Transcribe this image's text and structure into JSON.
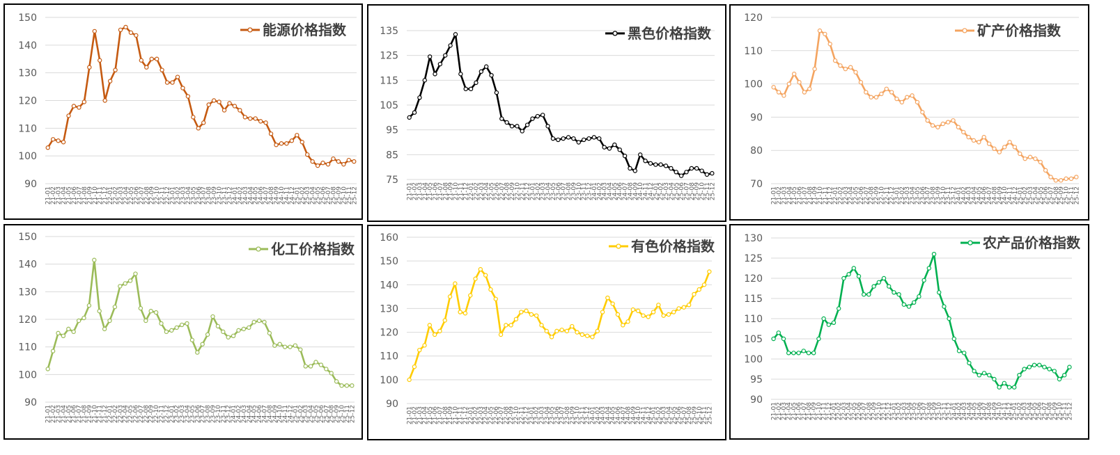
{
  "chart_data": [
    {
      "type": "line",
      "title": "",
      "series": [
        {
          "name": "能源价格指数",
          "color": "#C55A11",
          "values": [
            103,
            106,
            105.5,
            105,
            114.5,
            118,
            117.5,
            119.5,
            132,
            145,
            134.5,
            120,
            127,
            131,
            145.5,
            146.5,
            144.5,
            143.5,
            134.5,
            132,
            135,
            135,
            131,
            126.5,
            126.5,
            128.5,
            124.5,
            121.5,
            114,
            110,
            112,
            118.5,
            120,
            119.5,
            116.5,
            119,
            118,
            116.5,
            114,
            113.5,
            113.5,
            112.5,
            112,
            108,
            104,
            104.5,
            104.5,
            105.5,
            107.5,
            105,
            100.5,
            98,
            96.5,
            97.5,
            97,
            99,
            98,
            97,
            98.5,
            98
          ]
        }
      ],
      "ylim": [
        90,
        150
      ],
      "yticks": [
        90,
        100,
        110,
        120,
        130,
        140,
        150
      ],
      "x_tick_labels": [
        "21-01",
        "21-02",
        "21-03",
        "21-04",
        "21-05",
        "21-06",
        "21-07",
        "21-08",
        "21-09",
        "21-10",
        "21-11",
        "21-12",
        "22-01",
        "22-02",
        "22-03",
        "22-04",
        "22-05",
        "22-06",
        "22-07",
        "22-08",
        "22-09",
        "22-10",
        "22-11",
        "22-12",
        "23-01",
        "23-02",
        "23-03",
        "23-04",
        "23-05",
        "23-06",
        "23-07",
        "23-08",
        "23-09",
        "23-10",
        "23-11",
        "23-12",
        "24-01",
        "24-02",
        "24-03",
        "24-04",
        "24-05",
        "24-06",
        "24-07",
        "24-08",
        "24-09",
        "24-10",
        "24-11",
        "24-12",
        "25-01",
        "25-02",
        "25-03",
        "25-04",
        "25-05",
        "25-06",
        "25-07",
        "25-08",
        "25-09",
        "25-10",
        "25-11",
        "25-12"
      ],
      "grid": "horizontal",
      "legend_position": "top-right"
    },
    {
      "type": "line",
      "title": "",
      "series": [
        {
          "name": "黑色价格指数",
          "color": "#000000",
          "values": [
            100,
            102,
            108,
            115,
            124.5,
            117.5,
            121.5,
            125,
            129,
            133.5,
            117.5,
            111.5,
            111.5,
            114,
            118.5,
            120.5,
            117,
            110,
            99.5,
            98,
            96.5,
            96.5,
            94.5,
            97,
            99.5,
            100.5,
            101,
            96.5,
            91.5,
            91,
            91.5,
            92,
            91.5,
            90,
            91,
            91.5,
            92,
            91.5,
            88,
            87.5,
            89,
            87,
            84.5,
            79.5,
            78.5,
            85,
            82.5,
            81.5,
            81,
            81,
            80.5,
            79.5,
            78,
            76.5,
            78,
            79.5,
            79.5,
            78.5,
            77,
            77.5
          ]
        }
      ],
      "ylim": [
        75,
        135
      ],
      "yticks": [
        75,
        85,
        95,
        105,
        115,
        125,
        135
      ],
      "x_tick_labels": [
        "21-01",
        "21-02",
        "21-03",
        "21-04",
        "21-05",
        "21-06",
        "21-07",
        "21-08",
        "21-09",
        "21-10",
        "21-11",
        "21-12",
        "22-01",
        "22-02",
        "22-03",
        "22-04",
        "22-05",
        "22-06",
        "22-07",
        "22-08",
        "22-09",
        "22-10",
        "22-11",
        "22-12",
        "23-01",
        "23-02",
        "23-03",
        "23-04",
        "23-05",
        "23-06",
        "23-07",
        "23-08",
        "23-09",
        "23-10",
        "23-11",
        "23-12",
        "24-01",
        "24-02",
        "24-03",
        "24-04",
        "24-05",
        "24-06",
        "24-07",
        "24-08",
        "24-09",
        "24-10",
        "24-11",
        "24-12",
        "25-01",
        "25-02",
        "25-03",
        "25-04",
        "25-05",
        "25-06",
        "25-07",
        "25-08",
        "25-09",
        "25-10",
        "25-11",
        "25-12"
      ],
      "grid": "horizontal",
      "legend_position": "top-right"
    },
    {
      "type": "line",
      "title": "",
      "series": [
        {
          "name": "矿产价格指数",
          "color": "#F4A460",
          "values": [
            99,
            97.5,
            96.5,
            100,
            103,
            100.5,
            97.5,
            98.5,
            104.5,
            116,
            115,
            112,
            107,
            105.5,
            104.5,
            105,
            103.5,
            100.5,
            97.5,
            96,
            96,
            97,
            98.5,
            97.5,
            95.5,
            94.5,
            96,
            96.5,
            94.5,
            91.5,
            89,
            87.5,
            87,
            88,
            88.5,
            89,
            87,
            85.5,
            84,
            83,
            82.5,
            84,
            82,
            80.5,
            79.5,
            81,
            82.5,
            81,
            79,
            77.5,
            78,
            77.5,
            76.5,
            74,
            72,
            71,
            71,
            71.5,
            71.5,
            72
          ]
        }
      ],
      "ylim": [
        70,
        120
      ],
      "yticks": [
        70,
        80,
        90,
        100,
        110,
        120
      ],
      "x_tick_labels": [
        "21-01",
        "21-02",
        "21-03",
        "21-04",
        "21-05",
        "21-06",
        "21-07",
        "21-08",
        "21-09",
        "21-10",
        "21-11",
        "21-12",
        "22-01",
        "22-02",
        "22-03",
        "22-04",
        "22-05",
        "22-06",
        "22-07",
        "22-08",
        "22-09",
        "22-10",
        "22-11",
        "22-12",
        "23-01",
        "23-02",
        "23-03",
        "23-04",
        "23-05",
        "23-06",
        "23-07",
        "23-08",
        "23-09",
        "23-10",
        "23-11",
        "23-12",
        "24-01",
        "24-02",
        "24-03",
        "24-04",
        "24-05",
        "24-06",
        "24-07",
        "24-08",
        "24-09",
        "24-10",
        "24-11",
        "24-12",
        "25-01",
        "25-02",
        "25-03",
        "25-04",
        "25-05",
        "25-06",
        "25-07",
        "25-08",
        "25-09",
        "25-10",
        "25-11",
        "25-12"
      ],
      "grid": "horizontal",
      "legend_position": "top-right"
    },
    {
      "type": "line",
      "title": "",
      "series": [
        {
          "name": "化工价格指数",
          "color": "#9BBB59",
          "values": [
            102,
            108.5,
            115,
            114,
            116.5,
            115.5,
            119.5,
            120.5,
            125,
            141.5,
            123,
            116.5,
            119.5,
            124.5,
            132,
            133,
            134,
            136.5,
            124,
            119.5,
            123,
            122.5,
            118.5,
            115.5,
            116,
            117,
            118,
            118.5,
            112.5,
            108,
            111,
            114.5,
            121,
            117.5,
            115.5,
            113.5,
            114,
            116,
            116.5,
            117,
            119,
            119.5,
            119,
            115,
            110.5,
            111,
            110,
            110,
            110.5,
            109,
            103,
            103,
            104.5,
            103.5,
            102,
            100.5,
            97.5,
            96,
            96,
            96
          ]
        }
      ],
      "ylim": [
        90,
        150
      ],
      "yticks": [
        90,
        100,
        110,
        120,
        130,
        140,
        150
      ],
      "x_tick_labels": [
        "21-01",
        "21-02",
        "21-03",
        "21-04",
        "21-05",
        "21-06",
        "21-07",
        "21-08",
        "21-09",
        "21-10",
        "21-11",
        "21-12",
        "22-01",
        "22-02",
        "22-03",
        "22-04",
        "22-05",
        "22-06",
        "22-07",
        "22-08",
        "22-09",
        "22-10",
        "22-11",
        "22-12",
        "23-01",
        "23-02",
        "23-03",
        "23-04",
        "23-05",
        "23-06",
        "23-07",
        "23-08",
        "23-09",
        "23-10",
        "23-11",
        "23-12",
        "24-01",
        "24-02",
        "24-03",
        "24-04",
        "24-05",
        "24-06",
        "24-07",
        "24-08",
        "24-09",
        "24-10",
        "24-11",
        "24-12",
        "25-01",
        "25-02",
        "25-03",
        "25-04",
        "25-05",
        "25-06",
        "25-07",
        "25-08",
        "25-09",
        "25-10",
        "25-11",
        "25-12"
      ],
      "grid": "horizontal",
      "legend_position": "top-right"
    },
    {
      "type": "line",
      "title": "",
      "series": [
        {
          "name": "有色价格指数",
          "color": "#FFCC00",
          "values": [
            100,
            105.5,
            112.5,
            114.5,
            123,
            119,
            120.5,
            125,
            135,
            140.5,
            128.5,
            128,
            135.5,
            142.5,
            146.5,
            144,
            138,
            134,
            119,
            123,
            123,
            125.5,
            128.5,
            129,
            127.5,
            127,
            123,
            120.5,
            118,
            120.5,
            121,
            120.5,
            122.5,
            120,
            119,
            118.5,
            118,
            120.5,
            128.5,
            134.5,
            132,
            127.5,
            123,
            124.5,
            129.5,
            129,
            127,
            126.5,
            128.5,
            131.5,
            127,
            127.5,
            128.5,
            130,
            130.5,
            131.5,
            136,
            138,
            140,
            145.5
          ]
        }
      ],
      "ylim": [
        90,
        160
      ],
      "yticks": [
        90,
        100,
        110,
        120,
        130,
        140,
        150,
        160
      ],
      "x_tick_labels": [
        "21-01",
        "21-02",
        "21-03",
        "21-04",
        "21-05",
        "21-06",
        "21-07",
        "21-08",
        "21-09",
        "21-10",
        "21-11",
        "21-12",
        "22-01",
        "22-02",
        "22-03",
        "22-04",
        "22-05",
        "22-06",
        "22-07",
        "22-08",
        "22-09",
        "22-10",
        "22-11",
        "22-12",
        "23-01",
        "23-02",
        "23-03",
        "23-04",
        "23-05",
        "23-06",
        "23-07",
        "23-08",
        "23-09",
        "23-10",
        "23-11",
        "23-12",
        "24-01",
        "24-02",
        "24-03",
        "24-04",
        "24-05",
        "24-06",
        "24-07",
        "24-08",
        "24-09",
        "24-10",
        "24-11",
        "24-12",
        "25-01",
        "25-02",
        "25-03",
        "25-04",
        "25-05",
        "25-06",
        "25-07",
        "25-08",
        "25-09",
        "25-10",
        "25-11",
        "25-12"
      ],
      "grid": "horizontal",
      "legend_position": "top-right"
    },
    {
      "type": "line",
      "title": "",
      "series": [
        {
          "name": "农产品价格指数",
          "color": "#00B050",
          "values": [
            105,
            106.5,
            105,
            101.5,
            101.5,
            101.5,
            102,
            101.5,
            101.5,
            105,
            110,
            108.5,
            109,
            112.5,
            120,
            121,
            122.5,
            120.5,
            116,
            116,
            118,
            119,
            120,
            118,
            116.5,
            116,
            113.5,
            113,
            114,
            115.5,
            119.5,
            122.5,
            126,
            116.5,
            113,
            110,
            105,
            102,
            101.5,
            99,
            97,
            96,
            96.5,
            96,
            95,
            93,
            94,
            93,
            93,
            96,
            97.5,
            98,
            98.5,
            98.5,
            98,
            97.5,
            97,
            95,
            96,
            98
          ]
        }
      ],
      "ylim": [
        90,
        130
      ],
      "yticks": [
        90,
        95,
        100,
        105,
        110,
        115,
        120,
        125,
        130
      ],
      "x_tick_labels": [
        "21-01",
        "21-02",
        "21-03",
        "21-04",
        "21-05",
        "21-06",
        "21-07",
        "21-08",
        "21-09",
        "21-10",
        "21-11",
        "21-12",
        "22-01",
        "22-02",
        "22-03",
        "22-04",
        "22-05",
        "22-06",
        "22-07",
        "22-08",
        "22-09",
        "22-10",
        "22-11",
        "22-12",
        "23-01",
        "23-02",
        "23-03",
        "23-04",
        "23-05",
        "23-06",
        "23-07",
        "23-08",
        "23-09",
        "23-10",
        "23-11",
        "23-12",
        "24-01",
        "24-02",
        "24-03",
        "24-04",
        "24-05",
        "24-06",
        "24-07",
        "24-08",
        "24-09",
        "24-10",
        "24-11",
        "24-12",
        "25-01",
        "25-02",
        "25-03",
        "25-04",
        "25-05",
        "25-06",
        "25-07",
        "25-08",
        "25-09",
        "25-10",
        "25-11",
        "25-12"
      ],
      "grid": "horizontal",
      "legend_position": "top-right"
    }
  ]
}
